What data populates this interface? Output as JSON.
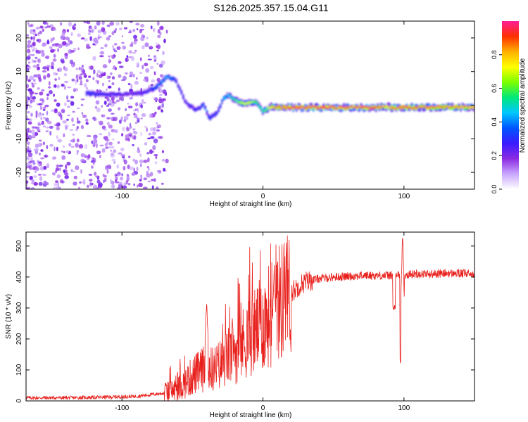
{
  "title": "S126.2025.357.15.04.G11",
  "chart_data": [
    {
      "type": "heatmap",
      "name": "spectrogram",
      "xlabel": "Height of straight line (km)",
      "ylabel": "Frequency (Hz)",
      "xlim": [
        -168,
        150
      ],
      "ylim": [
        -25,
        25
      ],
      "xticks": [
        -100,
        0,
        100
      ],
      "yticks": [
        20,
        10,
        0,
        -10,
        -20
      ],
      "colorbar": {
        "label": "Normalized spectral amplitude",
        "range": [
          0,
          1
        ],
        "ticks": [
          0.0,
          0.2,
          0.4,
          0.6,
          0.8
        ],
        "tick_labels": [
          "0.0",
          "0.2",
          "0.4",
          "0.6",
          "0.8"
        ],
        "colors": [
          "#ffffff",
          "#c9a6ff",
          "#8b2be2",
          "#3a1aff",
          "#0055ff",
          "#00c8ff",
          "#00e87a",
          "#7cff00",
          "#ffff00",
          "#ffb000",
          "#ff3000",
          "#ff1e96"
        ]
      },
      "ridge": {
        "x": [
          -125,
          -110,
          -95,
          -85,
          -75,
          -68,
          -62,
          -55,
          -48,
          -42,
          -38,
          -32,
          -28,
          -24,
          -20,
          -15,
          -10,
          -5,
          0,
          5,
          10,
          20,
          40,
          60,
          80,
          88,
          92,
          100,
          120,
          150
        ],
        "freq": [
          3.5,
          3.2,
          3.3,
          3.6,
          5.5,
          8.5,
          7.5,
          1.0,
          -1.5,
          0.0,
          -4.0,
          -2.0,
          2.0,
          3.0,
          1.5,
          0.5,
          0.8,
          1.0,
          -2.0,
          -0.5,
          -0.6,
          -0.7,
          -0.7,
          -0.7,
          -0.7,
          -0.5,
          -0.8,
          -0.7,
          -0.6,
          -0.6
        ],
        "amplitude": [
          0.35,
          0.3,
          0.25,
          0.28,
          0.4,
          0.45,
          0.35,
          0.3,
          0.3,
          0.4,
          0.35,
          0.35,
          0.45,
          0.5,
          0.6,
          0.7,
          0.75,
          0.6,
          0.55,
          0.8,
          0.9,
          0.95,
          0.97,
          0.97,
          0.95,
          0.8,
          0.9,
          0.95,
          0.9,
          0.85
        ]
      }
    },
    {
      "type": "line",
      "name": "snr",
      "xlabel": "Height of straight line (km)",
      "ylabel": "SNR (10 * v/v)",
      "xlim": [
        -168,
        150
      ],
      "ylim": [
        0,
        545
      ],
      "xticks": [
        -100,
        0,
        100
      ],
      "yticks": [
        0,
        100,
        200,
        300,
        400,
        500
      ],
      "color": "#e8201c",
      "trend": {
        "x": [
          -168,
          -140,
          -110,
          -90,
          -80,
          -70,
          -60,
          -55,
          -50,
          -45,
          -40,
          -35,
          -30,
          -25,
          -20,
          -15,
          -10,
          -5,
          0,
          5,
          10,
          15,
          20,
          25,
          30,
          40,
          50,
          60,
          70,
          80,
          90,
          100,
          110,
          120,
          130,
          150
        ],
        "y": [
          10,
          10,
          12,
          15,
          20,
          25,
          40,
          60,
          80,
          95,
          110,
          100,
          120,
          140,
          160,
          180,
          210,
          230,
          250,
          280,
          310,
          330,
          350,
          370,
          385,
          395,
          400,
          402,
          405,
          405,
          405,
          408,
          410,
          410,
          412,
          410
        ]
      },
      "features": [
        {
          "x": -40,
          "peak": 325
        },
        {
          "x": 8,
          "peak": 440
        },
        {
          "x": 93,
          "dip": 300
        },
        {
          "x": 98,
          "dip": 130
        },
        {
          "x": 99,
          "peak": 545
        }
      ]
    }
  ]
}
